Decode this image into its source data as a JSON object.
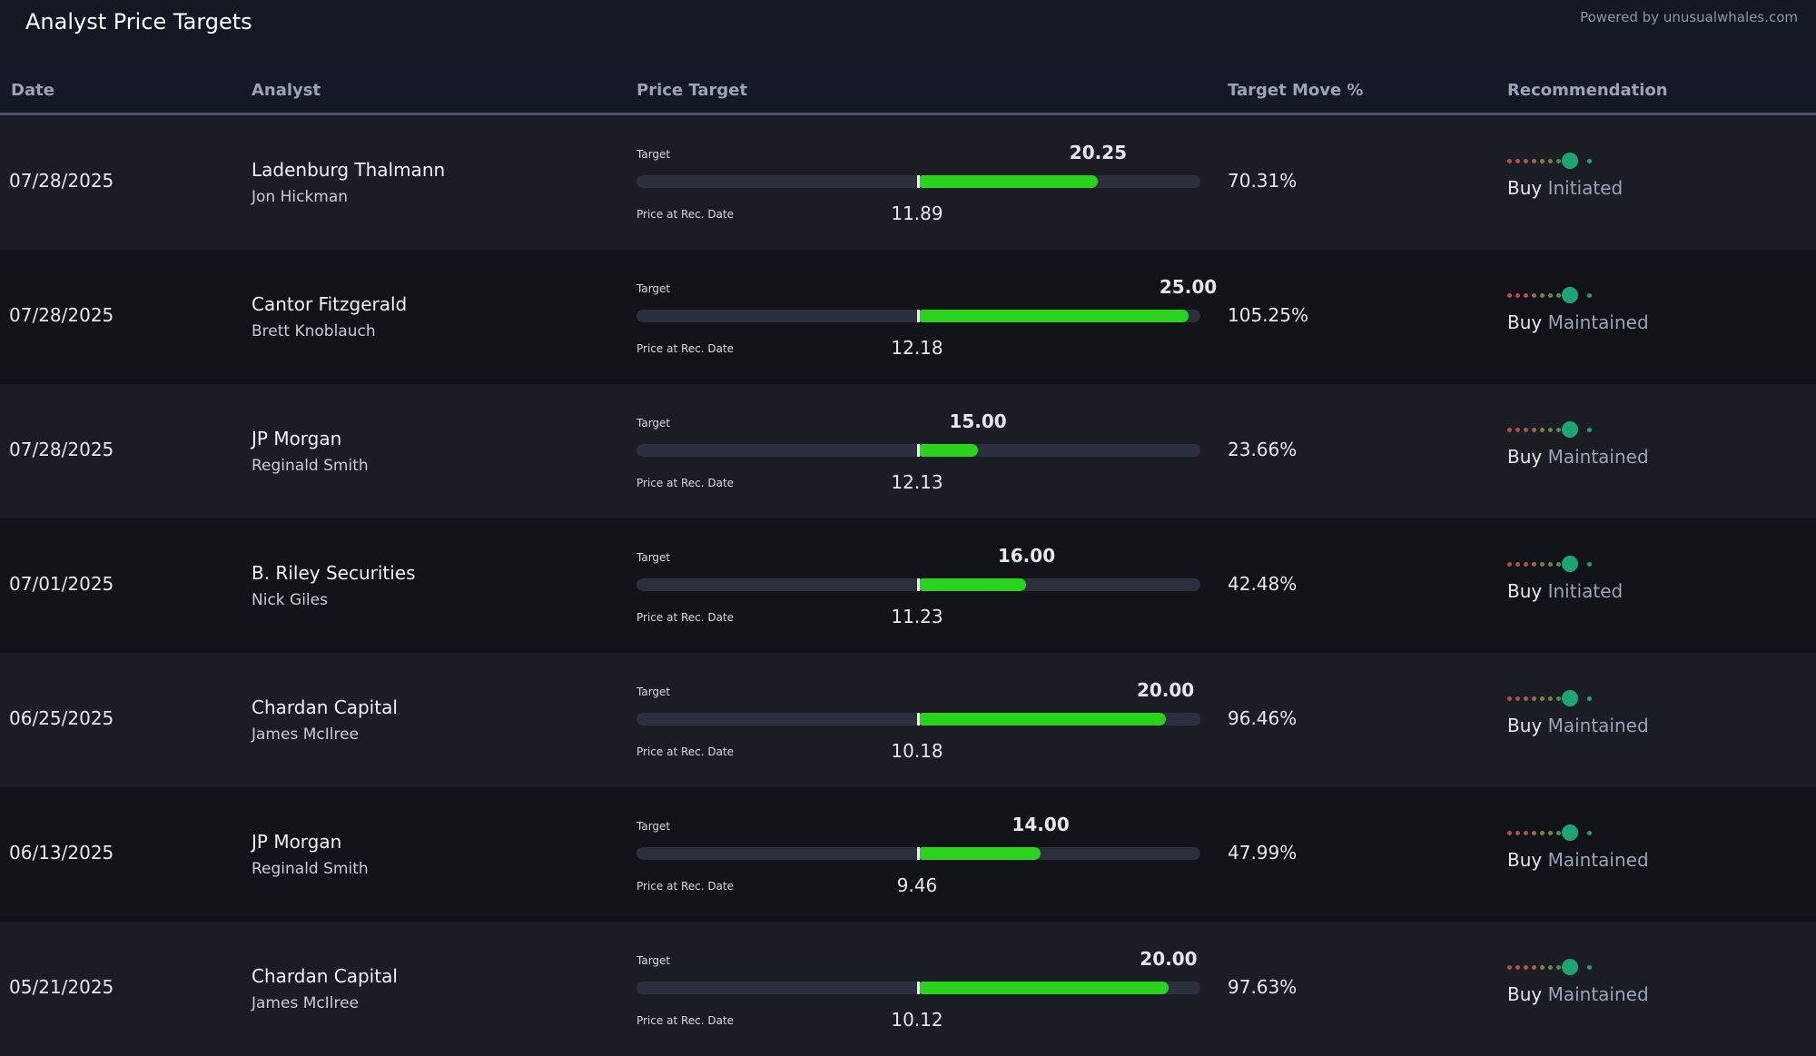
{
  "page": {
    "title": "Analyst Price Targets",
    "powered_by": "Powered by unusualwhales.com"
  },
  "columns": [
    "Date",
    "Analyst",
    "Price Target",
    "Target Move %",
    "Recommendation"
  ],
  "labels": {
    "target": "Target",
    "price_at_rec": "Price at Rec. Date"
  },
  "colors": {
    "bar_fill": "#2ad31c",
    "bar_track": "#2c2f3d",
    "rating_active": "#1fa574",
    "rating_scale": [
      "#b64a53",
      "#b24c4f",
      "#a6574a",
      "#9a6a45",
      "#8a7a42",
      "#6f8646",
      "#4f8e52",
      "#1fa574",
      "#2f9c80"
    ]
  },
  "rating_scale_count": 9,
  "rows": [
    {
      "date": "07/28/2025",
      "firm": "Ladenburg Thalmann",
      "analyst": "Jon Hickman",
      "target": "20.25",
      "price_at_rec": "11.89",
      "move": "70.31%",
      "rating": "Buy",
      "action": "Initiated",
      "rating_position": 8,
      "bar_fill_pct": 70.31
    },
    {
      "date": "07/28/2025",
      "firm": "Cantor Fitzgerald",
      "analyst": "Brett Knoblauch",
      "target": "25.00",
      "price_at_rec": "12.18",
      "move": "105.25%",
      "rating": "Buy",
      "action": "Maintained",
      "rating_position": 8,
      "bar_fill_pct": 105.25
    },
    {
      "date": "07/28/2025",
      "firm": "JP Morgan",
      "analyst": "Reginald Smith",
      "target": "15.00",
      "price_at_rec": "12.13",
      "move": "23.66%",
      "rating": "Buy",
      "action": "Maintained",
      "rating_position": 8,
      "bar_fill_pct": 23.66
    },
    {
      "date": "07/01/2025",
      "firm": "B. Riley Securities",
      "analyst": "Nick Giles",
      "target": "16.00",
      "price_at_rec": "11.23",
      "move": "42.48%",
      "rating": "Buy",
      "action": "Initiated",
      "rating_position": 8,
      "bar_fill_pct": 42.48
    },
    {
      "date": "06/25/2025",
      "firm": "Chardan Capital",
      "analyst": "James McIlree",
      "target": "20.00",
      "price_at_rec": "10.18",
      "move": "96.46%",
      "rating": "Buy",
      "action": "Maintained",
      "rating_position": 8,
      "bar_fill_pct": 96.46
    },
    {
      "date": "06/13/2025",
      "firm": "JP Morgan",
      "analyst": "Reginald Smith",
      "target": "14.00",
      "price_at_rec": "9.46",
      "move": "47.99%",
      "rating": "Buy",
      "action": "Maintained",
      "rating_position": 8,
      "bar_fill_pct": 47.99
    },
    {
      "date": "05/21/2025",
      "firm": "Chardan Capital",
      "analyst": "James McIlree",
      "target": "20.00",
      "price_at_rec": "10.12",
      "move": "97.63%",
      "rating": "Buy",
      "action": "Maintained",
      "rating_position": 8,
      "bar_fill_pct": 97.63
    }
  ]
}
